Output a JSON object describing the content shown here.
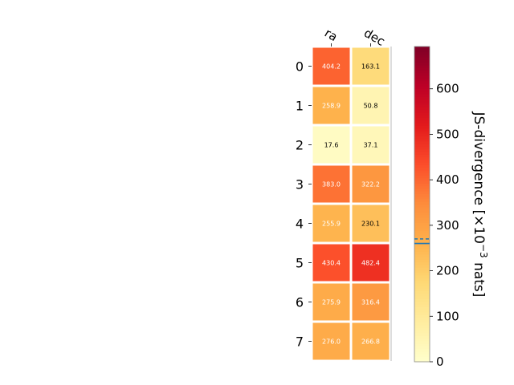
{
  "chart_data": {
    "type": "heatmap",
    "columns": [
      "ra",
      "dec"
    ],
    "rows": [
      "0",
      "1",
      "2",
      "3",
      "4",
      "5",
      "6",
      "7"
    ],
    "values": [
      [
        404.2,
        163.1
      ],
      [
        258.9,
        50.8
      ],
      [
        17.6,
        37.1
      ],
      [
        383.0,
        322.2
      ],
      [
        255.9,
        230.1
      ],
      [
        430.4,
        482.4
      ],
      [
        275.9,
        316.4
      ],
      [
        276.0,
        266.8
      ]
    ],
    "colorbar": {
      "label_prefix": "JS-divergence [×10",
      "label_exp": "−3",
      "label_suffix": " nats]",
      "range": [
        0,
        693
      ],
      "ticks": [
        0,
        100,
        200,
        300,
        400,
        500,
        600
      ],
      "colormap": "YlOrRd",
      "reference_lines": [
        {
          "value": 260,
          "style": "solid",
          "color": "#1f77b4"
        },
        {
          "value": 270,
          "style": "dashed",
          "color": "#1f77b4"
        }
      ]
    }
  }
}
